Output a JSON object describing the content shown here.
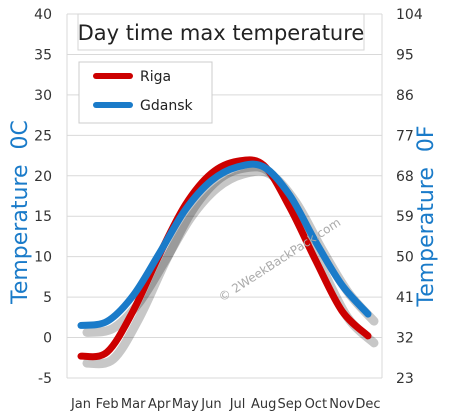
{
  "chart_data": {
    "type": "line",
    "title": "Day time max temperature",
    "ylabel_left": "Temperature",
    "ylabel_left_unit": "0C",
    "ylabel_right": "Temperature",
    "ylabel_right_unit": "0F",
    "categories": [
      "Jan",
      "Feb",
      "Mar",
      "Apr",
      "May",
      "Jun",
      "Jul",
      "Aug",
      "Sep",
      "Oct",
      "Nov",
      "Dec"
    ],
    "ylim": [
      -5,
      40
    ],
    "yticks_left": [
      "40",
      "35",
      "30",
      "25",
      "20",
      "15",
      "10",
      "5",
      "0",
      "-5"
    ],
    "yticks_right": [
      "104",
      "95",
      "86",
      "77",
      "68",
      "59",
      "50",
      "41",
      "32",
      "23"
    ],
    "series": [
      {
        "name": "Riga",
        "color": "#cc0000",
        "values": [
          -2.3,
          -1.8,
          3.3,
          10.2,
          16.4,
          20.3,
          21.8,
          21.3,
          16.1,
          9.5,
          3.3,
          0.2
        ]
      },
      {
        "name": "Gdansk",
        "color": "#1a7bc9",
        "values": [
          1.5,
          2.0,
          5.2,
          10.4,
          15.8,
          19.4,
          21.1,
          21.1,
          17.6,
          11.8,
          6.5,
          2.9
        ]
      }
    ],
    "grid": true,
    "legend_position": "top-left"
  },
  "watermark": "© 2WeekBackPack.com"
}
